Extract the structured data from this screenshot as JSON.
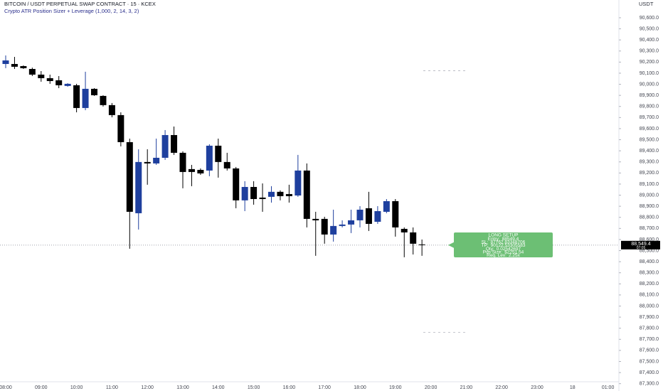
{
  "chart_data": {
    "type": "candlestick",
    "title": "BITCOIN / USDT PERPETUAL SWAP CONTRACT · 15 · KCEX",
    "subtitle": "Crypto ATR Position Sizer + Leverage (1,000, 2, 14, 3, 2)",
    "y_axis_label": "USDT",
    "up_color": "#1e3f9e",
    "down_color": "#000000",
    "categories": [
      "08:00",
      null,
      null,
      null,
      "09:00",
      null,
      null,
      null,
      "10:00",
      null,
      null,
      null,
      "11:00",
      null,
      null,
      null,
      "12:00",
      null,
      null,
      null,
      "13:00",
      null,
      null,
      null,
      "14:00",
      null,
      null,
      null,
      "15:00",
      null,
      null,
      null,
      "16:00",
      null,
      null,
      null,
      "17:00",
      null,
      null,
      null,
      "18:00",
      null,
      null,
      null,
      "19:00",
      null,
      null,
      null,
      "20:00",
      null,
      null,
      null,
      "21:00",
      null,
      null,
      null,
      "22:00",
      null,
      null,
      null,
      "23:00",
      null,
      null,
      null,
      "18",
      null,
      null,
      null,
      "01:00",
      null,
      null,
      null
    ],
    "open": [
      90183,
      90183,
      90164,
      90138,
      90087,
      90055,
      90036,
      89985,
      89991,
      89786,
      89959,
      89895,
      89812,
      89722,
      89478,
      88837,
      89299,
      89286,
      89337,
      89542,
      89382,
      89235,
      89228,
      89222,
      89446,
      89299,
      89241,
      88953,
      89074,
      88978,
      88985,
      89030,
      89010,
      88997,
      89222,
      88786,
      88786,
      88645,
      88722,
      88735,
      88773,
      88882,
      88760,
      88850,
      88946,
      88696,
      88664,
      88556,
      null,
      null,
      null,
      null,
      null,
      null,
      null,
      null,
      null,
      null,
      null,
      null,
      null,
      null,
      null,
      null,
      null,
      null,
      null,
      null,
      null,
      null,
      null,
      null
    ],
    "high": [
      90260,
      90247,
      90170,
      90150,
      90119,
      90087,
      90074,
      90010,
      90004,
      90113,
      89965,
      89901,
      89831,
      89747,
      89510,
      89414,
      89414,
      89510,
      89587,
      89619,
      89395,
      89273,
      89241,
      89459,
      89510,
      89382,
      89254,
      89126,
      89126,
      89106,
      89081,
      89043,
      89094,
      89363,
      89286,
      88850,
      88805,
      88869,
      88773,
      88869,
      88901,
      89030,
      88901,
      88965,
      88965,
      88709,
      88709,
      88600,
      null,
      null,
      null,
      null,
      null,
      null,
      null,
      null,
      null,
      null,
      null,
      null,
      null,
      null,
      null,
      null,
      null,
      null,
      null,
      null,
      null,
      null,
      null,
      null
    ],
    "low": [
      90145,
      90138,
      90138,
      90074,
      90023,
      90004,
      89965,
      89978,
      89747,
      89766,
      89895,
      89799,
      89702,
      89440,
      88517,
      88690,
      89094,
      89273,
      89318,
      89363,
      89062,
      89081,
      89183,
      89171,
      89158,
      89222,
      88882,
      88856,
      88914,
      88850,
      88933,
      88953,
      88933,
      88985,
      88709,
      88453,
      88562,
      88581,
      88709,
      88658,
      88709,
      88677,
      88741,
      88837,
      88626,
      88440,
      88465,
      88453,
      null,
      null,
      null,
      null,
      null,
      null,
      null,
      null,
      null,
      null,
      null,
      null,
      null,
      null,
      null,
      null,
      null,
      null,
      null,
      null,
      null,
      null,
      null,
      null
    ],
    "close": [
      90215,
      90158,
      90145,
      90087,
      90055,
      90029,
      89991,
      90004,
      89786,
      89959,
      89901,
      89812,
      89722,
      89478,
      88850,
      89299,
      89286,
      89337,
      89542,
      89382,
      89209,
      89209,
      89196,
      89446,
      89299,
      89241,
      88953,
      89074,
      88965,
      88965,
      89030,
      88991,
      88991,
      89222,
      88786,
      88773,
      88645,
      88722,
      88735,
      88773,
      88869,
      88741,
      88856,
      88946,
      88709,
      88664,
      88562,
      88549.4,
      null,
      null,
      null,
      null,
      null,
      null,
      null,
      null,
      null,
      null,
      null,
      null,
      null,
      null,
      null,
      null,
      null,
      null,
      null,
      null,
      null,
      null,
      null,
      null
    ],
    "ylim": [
      87330,
      90760
    ],
    "yticks": [
      {
        "value": 87300,
        "label": "87,300.0"
      },
      {
        "value": 87400,
        "label": "87,400.0"
      },
      {
        "value": 87500,
        "label": "87,500.0"
      },
      {
        "value": 87600,
        "label": "87,600.0"
      },
      {
        "value": 87700,
        "label": "87,700.0"
      },
      {
        "value": 87800,
        "label": "87,800.0"
      },
      {
        "value": 87900,
        "label": "87,900.0"
      },
      {
        "value": 88000,
        "label": "88,000.0"
      },
      {
        "value": 88100,
        "label": "88,100.0"
      },
      {
        "value": 88200,
        "label": "88,200.0"
      },
      {
        "value": 88300,
        "label": "88,300.0"
      },
      {
        "value": 88400,
        "label": "88,400.0"
      },
      {
        "value": 88500,
        "label": "88,500.0"
      },
      {
        "value": 88600,
        "label": "88,600.0"
      },
      {
        "value": 88700,
        "label": "88,700.0"
      },
      {
        "value": 88800,
        "label": "88,800.0"
      },
      {
        "value": 88900,
        "label": "88,900.0"
      },
      {
        "value": 89000,
        "label": "89,000.0"
      },
      {
        "value": 89100,
        "label": "89,100.0"
      },
      {
        "value": 89200,
        "label": "89,200.0"
      },
      {
        "value": 89300,
        "label": "89,300.0"
      },
      {
        "value": 89400,
        "label": "89,400.0"
      },
      {
        "value": 89500,
        "label": "89,500.0"
      },
      {
        "value": 89600,
        "label": "89,600.0"
      },
      {
        "value": 89700,
        "label": "89,700.0"
      },
      {
        "value": 89800,
        "label": "89,800.0"
      },
      {
        "value": 89900,
        "label": "89,900.0"
      },
      {
        "value": 90000,
        "label": "90,000.0"
      },
      {
        "value": 90100,
        "label": "90,100.0"
      },
      {
        "value": 90200,
        "label": "90,200.0"
      },
      {
        "value": 90300,
        "label": "90,300.0"
      },
      {
        "value": 90400,
        "label": "90,400.0"
      },
      {
        "value": 90500,
        "label": "90,500.0"
      },
      {
        "value": 90600,
        "label": "90,600.0"
      }
    ],
    "current_price": {
      "value": 88549.4,
      "label": "88,549.4"
    },
    "countdown": "07:05",
    "setup": {
      "title": "LONG SETUP",
      "color": "#6cbf74",
      "rows": [
        {
          "label": "Entry:",
          "value": 88549.4
        },
        {
          "label": "SL:",
          "value": 87762.83348706
        },
        {
          "label": "TP:",
          "value": 90122.53305583
        },
        {
          "label": "Qty:",
          "value": 0.02542697
        },
        {
          "label": "Pos Size:",
          "value": "$2251.54"
        },
        {
          "label": "Req. Lev:",
          "value": "2.25x"
        }
      ]
    }
  }
}
